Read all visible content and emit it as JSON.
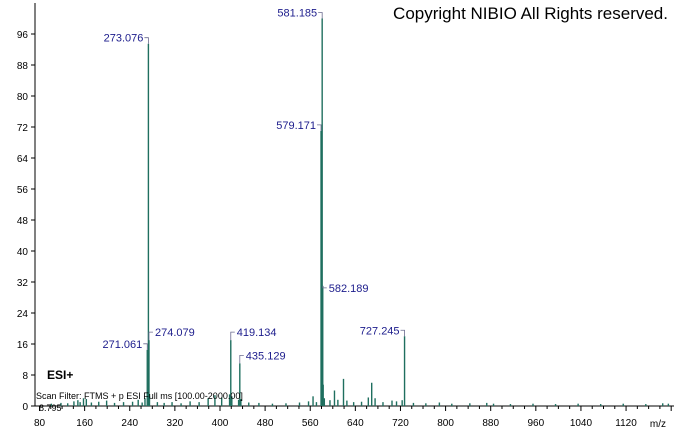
{
  "chart_data": {
    "type": "bar",
    "title": "",
    "xlabel": "m/z",
    "ylabel": "",
    "xlim": [
      72,
      1205
    ],
    "ylim": [
      0,
      104
    ],
    "xticks": [
      80,
      160,
      240,
      320,
      400,
      480,
      560,
      640,
      720,
      800,
      880,
      960,
      1040,
      1120
    ],
    "yticks": [
      0,
      8,
      16,
      24,
      32,
      40,
      48,
      56,
      64,
      72,
      80,
      88,
      96
    ],
    "peak_color": "#1f6f5f",
    "label_color": "#1c1c8c",
    "labeled_peaks": [
      {
        "mz": 273.076,
        "label": "273.076",
        "intensity": 93.5
      },
      {
        "mz": 271.061,
        "label": "271.061",
        "intensity": 14.5
      },
      {
        "mz": 274.079,
        "label": "274.079",
        "intensity": 17.0
      },
      {
        "mz": 419.134,
        "label": "419.134",
        "intensity": 17.0
      },
      {
        "mz": 435.129,
        "label": "435.129",
        "intensity": 11.0
      },
      {
        "mz": 581.185,
        "label": "581.185",
        "intensity": 100.0
      },
      {
        "mz": 579.171,
        "label": "579.171",
        "intensity": 71.0
      },
      {
        "mz": 582.189,
        "label": "582.189",
        "intensity": 31.0
      },
      {
        "mz": 727.245,
        "label": "727.245",
        "intensity": 18.0
      }
    ],
    "minor_peaks": [
      {
        "mz": 101,
        "intensity": 0.6
      },
      {
        "mz": 118,
        "intensity": 0.8
      },
      {
        "mz": 130,
        "intensity": 0.7
      },
      {
        "mz": 141,
        "intensity": 1.2
      },
      {
        "mz": 148,
        "intensity": 1.5
      },
      {
        "mz": 152,
        "intensity": 1.0
      },
      {
        "mz": 158,
        "intensity": 2.0
      },
      {
        "mz": 163,
        "intensity": 1.8
      },
      {
        "mz": 172,
        "intensity": 0.9
      },
      {
        "mz": 185,
        "intensity": 1.1
      },
      {
        "mz": 199,
        "intensity": 1.4
      },
      {
        "mz": 213,
        "intensity": 0.8
      },
      {
        "mz": 229,
        "intensity": 1.0
      },
      {
        "mz": 245,
        "intensity": 1.1
      },
      {
        "mz": 255,
        "intensity": 1.6
      },
      {
        "mz": 262,
        "intensity": 0.9
      },
      {
        "mz": 267,
        "intensity": 2.0
      },
      {
        "mz": 275,
        "intensity": 2.5
      },
      {
        "mz": 289,
        "intensity": 1.0
      },
      {
        "mz": 301,
        "intensity": 0.8
      },
      {
        "mz": 315,
        "intensity": 1.0
      },
      {
        "mz": 331,
        "intensity": 0.7
      },
      {
        "mz": 347,
        "intensity": 1.2
      },
      {
        "mz": 363,
        "intensity": 1.0
      },
      {
        "mz": 379,
        "intensity": 2.0
      },
      {
        "mz": 391,
        "intensity": 2.8
      },
      {
        "mz": 403,
        "intensity": 2.2
      },
      {
        "mz": 417,
        "intensity": 3.0
      },
      {
        "mz": 421,
        "intensity": 2.5
      },
      {
        "mz": 433,
        "intensity": 1.6
      },
      {
        "mz": 437,
        "intensity": 1.8
      },
      {
        "mz": 451,
        "intensity": 0.9
      },
      {
        "mz": 469,
        "intensity": 0.8
      },
      {
        "mz": 493,
        "intensity": 0.6
      },
      {
        "mz": 517,
        "intensity": 0.7
      },
      {
        "mz": 541,
        "intensity": 0.9
      },
      {
        "mz": 557,
        "intensity": 1.2
      },
      {
        "mz": 565,
        "intensity": 2.5
      },
      {
        "mz": 571,
        "intensity": 1.0
      },
      {
        "mz": 583,
        "intensity": 5.5
      },
      {
        "mz": 585,
        "intensity": 2.0
      },
      {
        "mz": 595,
        "intensity": 1.5
      },
      {
        "mz": 603,
        "intensity": 4.0
      },
      {
        "mz": 609,
        "intensity": 1.6
      },
      {
        "mz": 619,
        "intensity": 7.0
      },
      {
        "mz": 625,
        "intensity": 1.4
      },
      {
        "mz": 637,
        "intensity": 1.0
      },
      {
        "mz": 651,
        "intensity": 1.1
      },
      {
        "mz": 663,
        "intensity": 2.2
      },
      {
        "mz": 669,
        "intensity": 6.0
      },
      {
        "mz": 675,
        "intensity": 2.0
      },
      {
        "mz": 689,
        "intensity": 1.0
      },
      {
        "mz": 705,
        "intensity": 1.4
      },
      {
        "mz": 713,
        "intensity": 1.2
      },
      {
        "mz": 723,
        "intensity": 1.5
      },
      {
        "mz": 743,
        "intensity": 0.8
      },
      {
        "mz": 765,
        "intensity": 0.7
      },
      {
        "mz": 789,
        "intensity": 0.9
      },
      {
        "mz": 811,
        "intensity": 0.6
      },
      {
        "mz": 843,
        "intensity": 0.7
      },
      {
        "mz": 873,
        "intensity": 0.8
      },
      {
        "mz": 885,
        "intensity": 0.6
      },
      {
        "mz": 915,
        "intensity": 0.5
      },
      {
        "mz": 955,
        "intensity": 0.6
      },
      {
        "mz": 995,
        "intensity": 0.5
      },
      {
        "mz": 1035,
        "intensity": 0.6
      },
      {
        "mz": 1075,
        "intensity": 0.5
      },
      {
        "mz": 1115,
        "intensity": 0.6
      },
      {
        "mz": 1155,
        "intensity": 0.5
      },
      {
        "mz": 1185,
        "intensity": 0.7
      },
      {
        "mz": 1195,
        "intensity": 0.6
      }
    ]
  },
  "annotations": {
    "copyright": "Copyright NIBIO All Rights reserved.",
    "ion_mode": "ESI+",
    "scan_filter": "Scan Filter: FTMS + p ESI Full ms [100.00-2000.00]",
    "retention_time": "8.795"
  }
}
